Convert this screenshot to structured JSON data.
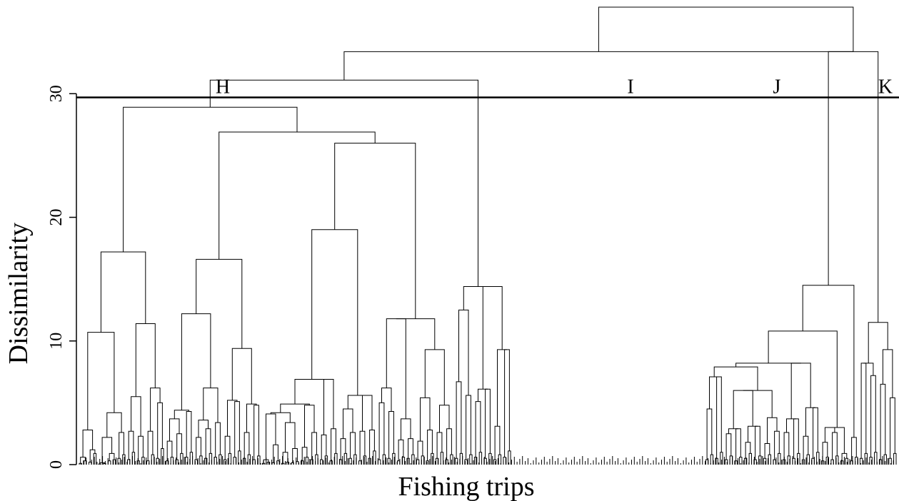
{
  "chart_data": {
    "type": "dendrogram",
    "xlabel": "Fishing trips",
    "ylabel": "Dissimilarity",
    "ylim": [
      0,
      37
    ],
    "yticks": [
      0,
      10,
      20,
      30
    ],
    "cut_height": 29.7,
    "cluster_labels": [
      "H",
      "I",
      "J",
      "K"
    ],
    "merges": [
      [
        -1,
        -2,
        0.1
      ],
      [
        -3,
        -4,
        0.3
      ],
      [
        1,
        2,
        0.6
      ],
      [
        -5,
        -6,
        0.2
      ],
      [
        -7,
        -8,
        0.9
      ],
      [
        4,
        5,
        1.2
      ],
      [
        3,
        6,
        2.8
      ],
      [
        -9,
        -10,
        0.05
      ],
      [
        -11,
        -12,
        0.08
      ],
      [
        8,
        9,
        0.15
      ],
      [
        -13,
        -14,
        0.3
      ],
      [
        -15,
        -16,
        0.4
      ],
      [
        11,
        12,
        0.9
      ],
      [
        10,
        13,
        2.2
      ],
      [
        -17,
        -18,
        0.5
      ],
      [
        -19,
        -20,
        0.8
      ],
      [
        15,
        16,
        2.6
      ],
      [
        14,
        17,
        4.2
      ],
      [
        7,
        18,
        10.7
      ],
      [
        -21,
        -22,
        0.4
      ],
      [
        -23,
        -24,
        1.0
      ],
      [
        20,
        21,
        2.7
      ],
      [
        -25,
        -26,
        0.3
      ],
      [
        -27,
        -28,
        0.6
      ],
      [
        23,
        24,
        2.3
      ],
      [
        22,
        25,
        5.5
      ],
      [
        -29,
        -30,
        0.3
      ],
      [
        -31,
        -32,
        0.8
      ],
      [
        27,
        28,
        2.7
      ],
      [
        -33,
        -34,
        0.5
      ],
      [
        -35,
        -36,
        1.3
      ],
      [
        30,
        31,
        5.0
      ],
      [
        29,
        32,
        6.2
      ],
      [
        26,
        33,
        11.4
      ],
      [
        19,
        34,
        17.2
      ],
      [
        -37,
        -38,
        0.3
      ],
      [
        -39,
        -40,
        0.6
      ],
      [
        36,
        37,
        1.9
      ],
      [
        -41,
        -42,
        0.4
      ],
      [
        -43,
        -44,
        0.9
      ],
      [
        39,
        40,
        2.5
      ],
      [
        38,
        41,
        3.7
      ],
      [
        -45,
        -46,
        0.6
      ],
      [
        -47,
        -48,
        1.0
      ],
      [
        43,
        44,
        4.3
      ],
      [
        42,
        45,
        4.4
      ],
      [
        -49,
        -50,
        0.4
      ],
      [
        -51,
        -52,
        0.7
      ],
      [
        47,
        48,
        2.2
      ],
      [
        -53,
        -54,
        0.5
      ],
      [
        -55,
        -56,
        0.9
      ],
      [
        50,
        51,
        2.9
      ],
      [
        49,
        52,
        3.6
      ],
      [
        -57,
        -58,
        0.6
      ],
      [
        -59,
        -60,
        0.8
      ],
      [
        54,
        55,
        3.4
      ],
      [
        53,
        56,
        6.2
      ],
      [
        46,
        57,
        12.2
      ],
      [
        -61,
        -62,
        0.4
      ],
      [
        -63,
        -64,
        0.9
      ],
      [
        59,
        60,
        2.3
      ],
      [
        -65,
        -66,
        0.6
      ],
      [
        -67,
        -68,
        1.1
      ],
      [
        62,
        63,
        5.1
      ],
      [
        61,
        64,
        5.2
      ],
      [
        -69,
        -70,
        0.5
      ],
      [
        -71,
        -72,
        0.8
      ],
      [
        66,
        67,
        2.6
      ],
      [
        -73,
        -74,
        0.4
      ],
      [
        -75,
        -76,
        0.7
      ],
      [
        69,
        70,
        4.8
      ],
      [
        68,
        71,
        4.9
      ],
      [
        65,
        72,
        9.4
      ],
      [
        58,
        73,
        16.6
      ],
      [
        -77,
        -78,
        0.1
      ],
      [
        -79,
        -80,
        0.2
      ],
      [
        75,
        76,
        0.4
      ],
      [
        -81,
        -82,
        0.15
      ],
      [
        -83,
        -84,
        0.3
      ],
      [
        78,
        79,
        1.6
      ],
      [
        77,
        80,
        4.1
      ],
      [
        -85,
        -86,
        0.1
      ],
      [
        -87,
        -88,
        0.2
      ],
      [
        82,
        83,
        1.0
      ],
      [
        -89,
        -90,
        0.15
      ],
      [
        -91,
        -92,
        0.25
      ],
      [
        85,
        86,
        1.3
      ],
      [
        84,
        87,
        3.4
      ],
      [
        81,
        88,
        4.2
      ],
      [
        -93,
        -94,
        0.3
      ],
      [
        -95,
        -96,
        0.6
      ],
      [
        90,
        91,
        1.4
      ],
      [
        -97,
        -98,
        0.4
      ],
      [
        -99,
        -100,
        0.8
      ],
      [
        93,
        94,
        2.6
      ],
      [
        92,
        95,
        4.8
      ],
      [
        89,
        96,
        4.9
      ],
      [
        -101,
        -102,
        0.4
      ],
      [
        -103,
        -104,
        0.7
      ],
      [
        98,
        99,
        2.4
      ],
      [
        -105,
        -106,
        0.3
      ],
      [
        -107,
        -108,
        0.9
      ],
      [
        101,
        102,
        2.9
      ],
      [
        100,
        103,
        6.9
      ],
      [
        97,
        104,
        6.9
      ],
      [
        -109,
        -110,
        0.4
      ],
      [
        -111,
        -112,
        0.9
      ],
      [
        106,
        107,
        2.1
      ],
      [
        -113,
        -114,
        0.5
      ],
      [
        -115,
        -116,
        0.8
      ],
      [
        109,
        110,
        2.6
      ],
      [
        108,
        111,
        4.5
      ],
      [
        -117,
        -118,
        0.3
      ],
      [
        -119,
        -120,
        0.7
      ],
      [
        113,
        114,
        2.7
      ],
      [
        -121,
        -122,
        0.5
      ],
      [
        -123,
        -124,
        1.1
      ],
      [
        116,
        117,
        2.8
      ],
      [
        115,
        118,
        5.6
      ],
      [
        112,
        119,
        5.6
      ],
      [
        105,
        120,
        19.0
      ],
      [
        -125,
        -126,
        0.4
      ],
      [
        -127,
        -128,
        0.8
      ],
      [
        122,
        123,
        5.0
      ],
      [
        -129,
        -130,
        0.5
      ],
      [
        -131,
        -132,
        0.9
      ],
      [
        125,
        126,
        4.3
      ],
      [
        124,
        127,
        6.2
      ],
      [
        -133,
        -134,
        0.3
      ],
      [
        -135,
        -136,
        0.6
      ],
      [
        129,
        130,
        2.0
      ],
      [
        -137,
        -138,
        0.5
      ],
      [
        -139,
        -140,
        0.8
      ],
      [
        132,
        133,
        2.1
      ],
      [
        131,
        134,
        3.7
      ],
      [
        128,
        135,
        11.8
      ],
      [
        -141,
        -142,
        0.4
      ],
      [
        -143,
        -144,
        0.7
      ],
      [
        137,
        138,
        1.9
      ],
      [
        -145,
        -146,
        0.3
      ],
      [
        -147,
        -148,
        0.9
      ],
      [
        140,
        141,
        2.8
      ],
      [
        139,
        142,
        5.4
      ],
      [
        -149,
        -150,
        0.5
      ],
      [
        -151,
        -152,
        1.0
      ],
      [
        144,
        145,
        2.6
      ],
      [
        -153,
        -154,
        0.4
      ],
      [
        -155,
        -156,
        0.8
      ],
      [
        147,
        148,
        2.9
      ],
      [
        146,
        149,
        4.8
      ],
      [
        143,
        150,
        9.3
      ],
      [
        136,
        151,
        11.8
      ],
      [
        121,
        152,
        26.0
      ],
      [
        74,
        153,
        26.9
      ],
      [
        35,
        154,
        28.9
      ],
      [
        -157,
        -158,
        0.5
      ],
      [
        -159,
        -160,
        0.9
      ],
      [
        156,
        157,
        6.7
      ],
      [
        -161,
        -162,
        0.4
      ],
      [
        -163,
        -164,
        0.8
      ],
      [
        159,
        160,
        5.6
      ],
      [
        158,
        161,
        12.5
      ],
      [
        -165,
        -166,
        0.6
      ],
      [
        -167,
        -168,
        1.0
      ],
      [
        163,
        164,
        5.1
      ],
      [
        -169,
        -170,
        0.5
      ],
      [
        -171,
        -172,
        0.9
      ],
      [
        166,
        167,
        6.1
      ],
      [
        165,
        168,
        6.1
      ],
      [
        -173,
        -174,
        0.4
      ],
      [
        -175,
        -176,
        0.8
      ],
      [
        170,
        171,
        3.1
      ],
      [
        -177,
        -178,
        0.6
      ],
      [
        -179,
        -180,
        1.1
      ],
      [
        173,
        174,
        9.3
      ],
      [
        172,
        175,
        9.3
      ],
      [
        169,
        176,
        14.4
      ],
      [
        162,
        177,
        14.4
      ],
      [
        155,
        178,
        31.1
      ],
      [
        -181,
        -182,
        0.4
      ],
      [
        -183,
        -184,
        0.8
      ],
      [
        180,
        181,
        4.5
      ],
      [
        -185,
        -186,
        0.5
      ],
      [
        -187,
        -188,
        1.0
      ],
      [
        183,
        184,
        7.1
      ],
      [
        182,
        185,
        7.1
      ],
      [
        -189,
        -190,
        0.4
      ],
      [
        -191,
        -192,
        0.7
      ],
      [
        187,
        188,
        2.5
      ],
      [
        -193,
        -194,
        0.3
      ],
      [
        -195,
        -196,
        0.6
      ],
      [
        190,
        191,
        2.9
      ],
      [
        189,
        192,
        2.9
      ],
      [
        -197,
        -198,
        0.5
      ],
      [
        -199,
        -200,
        0.9
      ],
      [
        194,
        195,
        1.8
      ],
      [
        -201,
        -202,
        0.4
      ],
      [
        -203,
        -204,
        0.7
      ],
      [
        197,
        198,
        3.1
      ],
      [
        196,
        199,
        3.1
      ],
      [
        193,
        200,
        6.0
      ],
      [
        -205,
        -206,
        0.5
      ],
      [
        -207,
        -208,
        0.8
      ],
      [
        202,
        203,
        1.7
      ],
      [
        -209,
        -210,
        0.4
      ],
      [
        -211,
        -212,
        0.9
      ],
      [
        205,
        206,
        2.7
      ],
      [
        204,
        207,
        3.8
      ],
      [
        201,
        208,
        6.0
      ],
      [
        186,
        209,
        7.9
      ],
      [
        -213,
        -214,
        0.4
      ],
      [
        -215,
        -216,
        0.7
      ],
      [
        211,
        212,
        2.6
      ],
      [
        -217,
        -218,
        0.5
      ],
      [
        -219,
        -220,
        0.9
      ],
      [
        214,
        215,
        3.7
      ],
      [
        213,
        216,
        3.7
      ],
      [
        -221,
        -222,
        0.4
      ],
      [
        -223,
        -224,
        0.8
      ],
      [
        218,
        219,
        2.3
      ],
      [
        -225,
        -226,
        0.5
      ],
      [
        -227,
        -228,
        1.0
      ],
      [
        221,
        222,
        4.6
      ],
      [
        220,
        223,
        4.6
      ],
      [
        217,
        224,
        8.2
      ],
      [
        210,
        225,
        8.2
      ],
      [
        -229,
        -230,
        0.3
      ],
      [
        -231,
        -232,
        0.6
      ],
      [
        227,
        228,
        1.8
      ],
      [
        -233,
        -234,
        0.4
      ],
      [
        -235,
        -236,
        0.7
      ],
      [
        230,
        231,
        2.6
      ],
      [
        229,
        232,
        3.0
      ],
      [
        -237,
        -238,
        0.3
      ],
      [
        -239,
        -240,
        0.5
      ],
      [
        234,
        235,
        0.9
      ],
      [
        233,
        236,
        3.0
      ],
      [
        226,
        237,
        10.8
      ],
      [
        -241,
        -242,
        0.3
      ],
      [
        -243,
        -244,
        0.6
      ],
      [
        239,
        240,
        2.2
      ],
      [
        238,
        241,
        14.5
      ],
      [
        -245,
        -246,
        0.5
      ],
      [
        -247,
        -248,
        0.9
      ],
      [
        243,
        244,
        8.2
      ],
      [
        -249,
        -250,
        0.6
      ],
      [
        -251,
        -252,
        1.0
      ],
      [
        246,
        247,
        7.2
      ],
      [
        245,
        248,
        8.2
      ],
      [
        -253,
        -254,
        0.4
      ],
      [
        -255,
        -256,
        0.8
      ],
      [
        250,
        251,
        6.5
      ],
      [
        -257,
        -258,
        0.5
      ],
      [
        -259,
        -260,
        0.9
      ],
      [
        253,
        254,
        5.4
      ],
      [
        252,
        255,
        9.3
      ],
      [
        249,
        256,
        11.5
      ],
      [
        242,
        257,
        33.4
      ],
      [
        179,
        258,
        33.4
      ],
      [
        259,
        258,
        37.0
      ]
    ]
  }
}
